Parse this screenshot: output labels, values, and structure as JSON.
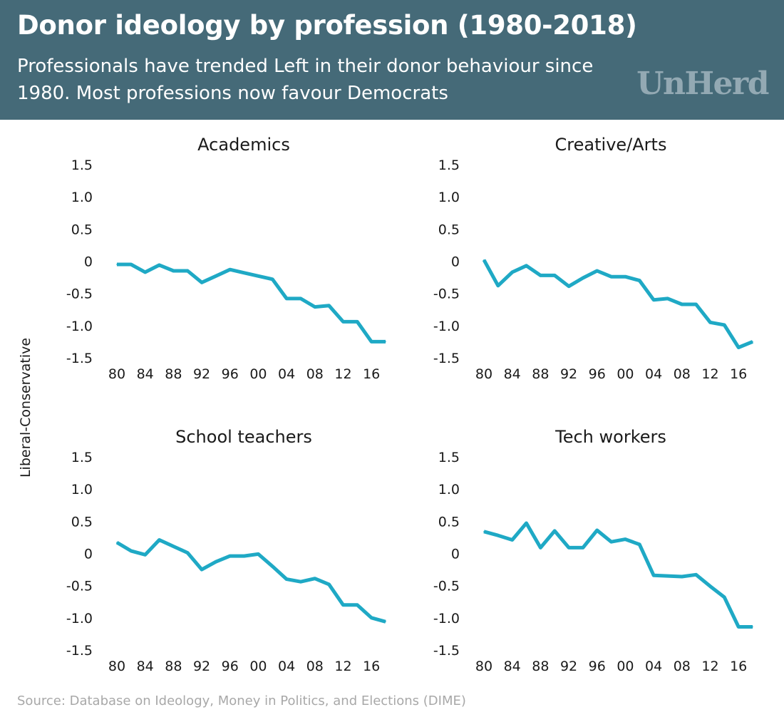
{
  "header": {
    "title": "Donor ideology by profession (1980-2018)",
    "subtitle": "Professionals have trended Left in their donor behaviour since 1980. Most professions now favour Democrats",
    "logo": "UnHerd",
    "background": "#456a78"
  },
  "ylabel": "Liberal-Conservative",
  "source": "Source: Database on Ideology, Money in Politics, and Elections (DIME)",
  "line_color": "#1fa9c5",
  "chart_data": [
    {
      "type": "line",
      "title": "Academics",
      "ylim": [
        -1.5,
        1.5
      ],
      "yticks": [
        "1.5",
        "1.0",
        "0.5",
        "0",
        "-0.5",
        "-1.0",
        "-1.5"
      ],
      "ytick_values": [
        1.5,
        1.0,
        0.5,
        0,
        -0.5,
        -1.0,
        -1.5
      ],
      "xticks": [
        "80",
        "84",
        "88",
        "92",
        "96",
        "00",
        "04",
        "08",
        "12",
        "16"
      ],
      "x": [
        1980,
        1982,
        1984,
        1986,
        1988,
        1990,
        1992,
        1994,
        1996,
        1998,
        2000,
        2002,
        2004,
        2006,
        2008,
        2010,
        2012,
        2014,
        2016,
        2018
      ],
      "series": [
        {
          "values": [
            -0.05,
            -0.05,
            -0.17,
            -0.06,
            -0.15,
            -0.15,
            -0.33,
            -0.23,
            -0.13,
            -0.18,
            -0.23,
            -0.28,
            -0.58,
            -0.58,
            -0.71,
            -0.69,
            -0.94,
            -0.94,
            -1.25,
            -1.25
          ]
        }
      ]
    },
    {
      "type": "line",
      "title": "Creative/Arts",
      "ylim": [
        -1.5,
        1.5
      ],
      "yticks": [
        "1.5",
        "1.0",
        "0.5",
        "0",
        "-0.5",
        "-1.0",
        "-1.5"
      ],
      "ytick_values": [
        1.5,
        1.0,
        0.5,
        0,
        -0.5,
        -1.0,
        -1.5
      ],
      "xticks": [
        "80",
        "84",
        "88",
        "92",
        "96",
        "00",
        "04",
        "08",
        "12",
        "16"
      ],
      "x": [
        1980,
        1982,
        1984,
        1986,
        1988,
        1990,
        1992,
        1994,
        1996,
        1998,
        2000,
        2002,
        2004,
        2006,
        2008,
        2010,
        2012,
        2014,
        2016,
        2018
      ],
      "series": [
        {
          "values": [
            0.02,
            -0.38,
            -0.17,
            -0.07,
            -0.22,
            -0.22,
            -0.39,
            -0.26,
            -0.15,
            -0.24,
            -0.24,
            -0.3,
            -0.6,
            -0.58,
            -0.67,
            -0.67,
            -0.95,
            -0.99,
            -1.34,
            -1.25
          ]
        }
      ]
    },
    {
      "type": "line",
      "title": "School teachers",
      "ylim": [
        -1.5,
        1.5
      ],
      "yticks": [
        "1.5",
        "1.0",
        "0.5",
        "0",
        "-0.5",
        "-1.0",
        "-1.5"
      ],
      "ytick_values": [
        1.5,
        1.0,
        0.5,
        0,
        -0.5,
        -1.0,
        -1.5
      ],
      "xticks": [
        "80",
        "84",
        "88",
        "92",
        "96",
        "00",
        "04",
        "08",
        "12",
        "16"
      ],
      "x": [
        1980,
        1982,
        1984,
        1986,
        1988,
        1990,
        1992,
        1994,
        1996,
        1998,
        2000,
        2002,
        2004,
        2006,
        2008,
        2010,
        2012,
        2014,
        2016,
        2018
      ],
      "series": [
        {
          "values": [
            0.17,
            0.04,
            -0.02,
            0.21,
            0.11,
            0.01,
            -0.25,
            -0.13,
            -0.04,
            -0.04,
            -0.01,
            -0.2,
            -0.4,
            -0.44,
            -0.39,
            -0.48,
            -0.8,
            -0.8,
            -1.0,
            -1.06
          ]
        }
      ]
    },
    {
      "type": "line",
      "title": "Tech workers",
      "ylim": [
        -1.5,
        1.5
      ],
      "yticks": [
        "1.5",
        "1.0",
        "0.5",
        "0",
        "-0.5",
        "-1.0",
        "-1.5"
      ],
      "ytick_values": [
        1.5,
        1.0,
        0.5,
        0,
        -0.5,
        -1.0,
        -1.5
      ],
      "xticks": [
        "80",
        "84",
        "88",
        "92",
        "96",
        "00",
        "04",
        "08",
        "12",
        "16"
      ],
      "x": [
        1980,
        1982,
        1984,
        1986,
        1988,
        1990,
        1992,
        1994,
        1996,
        1998,
        2000,
        2002,
        2004,
        2006,
        2008,
        2010,
        2012,
        2014,
        2016,
        2018
      ],
      "series": [
        {
          "values": [
            0.34,
            0.28,
            0.21,
            0.47,
            0.09,
            0.35,
            0.09,
            0.09,
            0.36,
            0.18,
            0.22,
            0.14,
            -0.34,
            -0.35,
            -0.36,
            -0.33,
            -0.51,
            -0.68,
            -1.14,
            -1.14
          ]
        }
      ]
    }
  ]
}
